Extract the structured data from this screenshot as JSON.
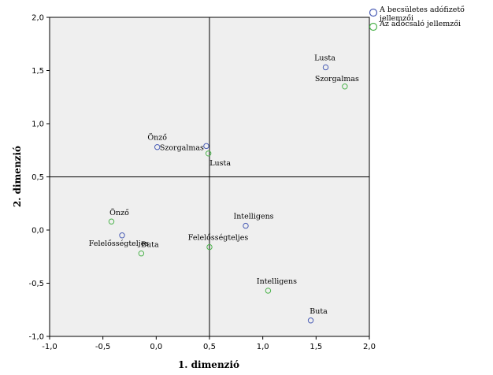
{
  "chart_data": {
    "type": "scatter",
    "xlabel": "1. dimenzió",
    "ylabel": "2. dimenzió",
    "xlim": [
      -1.0,
      2.0
    ],
    "ylim": [
      -1.0,
      2.0
    ],
    "x_ticks": [
      "-1,0",
      "-0,5",
      "0,0",
      "0,5",
      "1,0",
      "1,5",
      "2,0"
    ],
    "y_ticks": [
      "2,0",
      "1,5",
      "1,0",
      "0,5",
      "0,0",
      "-0,5",
      "-1,0"
    ],
    "x_tick_values": [
      -1.0,
      -0.5,
      0.0,
      0.5,
      1.0,
      1.5,
      2.0
    ],
    "y_tick_values": [
      2.0,
      1.5,
      1.0,
      0.5,
      0.0,
      -0.5,
      -1.0
    ],
    "reference_lines": {
      "x": 0.5,
      "y": 0.5
    },
    "legend_position": "top-right, outside plot",
    "series": [
      {
        "name": "A becsületes adófizető jellemzői",
        "name_lines": [
          "A becsületes adófizető",
          "jellemzői"
        ],
        "color": "#4a5db5",
        "points": [
          {
            "label": "Lusta",
            "x": 1.59,
            "y": 1.53
          },
          {
            "label": "Önző",
            "x": 0.01,
            "y": 0.78
          },
          {
            "label": "Szorgalmas",
            "x": 0.47,
            "y": 0.79
          },
          {
            "label": "Felelősségteljes",
            "x": -0.32,
            "y": -0.05
          },
          {
            "label": "Intelligens",
            "x": 0.84,
            "y": 0.04
          },
          {
            "label": "Buta",
            "x": 1.45,
            "y": -0.85
          }
        ]
      },
      {
        "name": "Az adócsaló jellemzői",
        "name_lines": [
          "Az adócsaló jellemzői"
        ],
        "color": "#4db34d",
        "points": [
          {
            "label": "Szorgalmas",
            "x": 1.77,
            "y": 1.35
          },
          {
            "label": "Lusta",
            "x": 0.49,
            "y": 0.72
          },
          {
            "label": "Önző",
            "x": -0.42,
            "y": 0.08
          },
          {
            "label": "Buta",
            "x": -0.14,
            "y": -0.22
          },
          {
            "label": "Felelősségteljes",
            "x": 0.5,
            "y": -0.16
          },
          {
            "label": "Intelligens",
            "x": 1.05,
            "y": -0.57
          }
        ]
      }
    ]
  }
}
